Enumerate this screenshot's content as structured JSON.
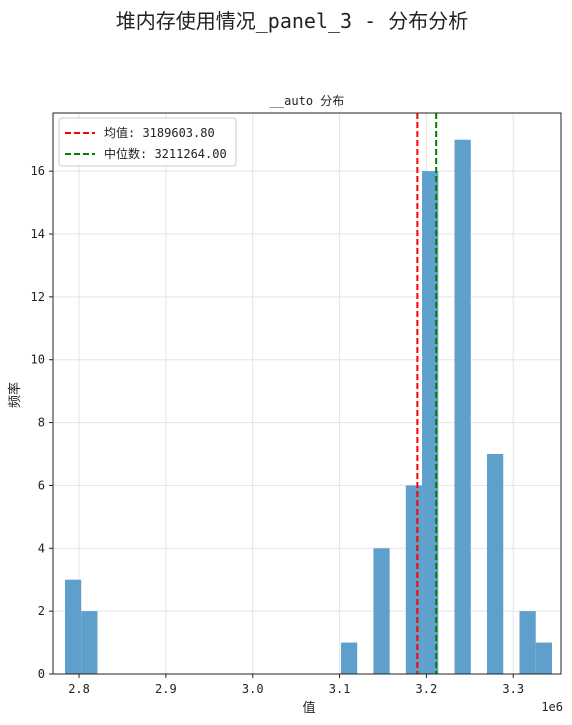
{
  "suptitle": "堆内存使用情况_panel_3 - 分布分析",
  "chart_data": {
    "type": "histogram",
    "title": "__auto 分布",
    "xlabel": "值",
    "ylabel": "频率",
    "x_offset_label": "1e6",
    "xlim": [
      2.77,
      3.355
    ],
    "ylim": [
      0,
      17.85
    ],
    "x_ticks": [
      2.8,
      2.9,
      3.0,
      3.1,
      3.2,
      3.3
    ],
    "x_tick_labels": [
      "2.8",
      "2.9",
      "3.0",
      "3.1",
      "3.2",
      "3.3"
    ],
    "y_ticks": [
      0,
      2,
      4,
      6,
      8,
      10,
      12,
      14,
      16
    ],
    "y_tick_labels": [
      "0",
      "2",
      "4",
      "6",
      "8",
      "10",
      "12",
      "14",
      "16"
    ],
    "bin_width": 0.0187,
    "bins": [
      {
        "x0": 2.7838,
        "count": 3
      },
      {
        "x0": 2.8025,
        "count": 2
      },
      {
        "x0": 3.1016,
        "count": 1
      },
      {
        "x0": 3.139,
        "count": 4
      },
      {
        "x0": 3.1763,
        "count": 6
      },
      {
        "x0": 3.195,
        "count": 16
      },
      {
        "x0": 3.2324,
        "count": 17
      },
      {
        "x0": 3.2698,
        "count": 7
      },
      {
        "x0": 3.3072,
        "count": 2
      },
      {
        "x0": 3.3259,
        "count": 1
      }
    ],
    "bar_color": "#5f9fcb",
    "mean": {
      "value": 3.1896038,
      "label": "均值: 3189603.80",
      "color": "#ff0000"
    },
    "median": {
      "value": 3.211264,
      "label": "中位数: 3211264.00",
      "color": "#008000"
    },
    "grid": true,
    "legend_position": "upper left"
  }
}
